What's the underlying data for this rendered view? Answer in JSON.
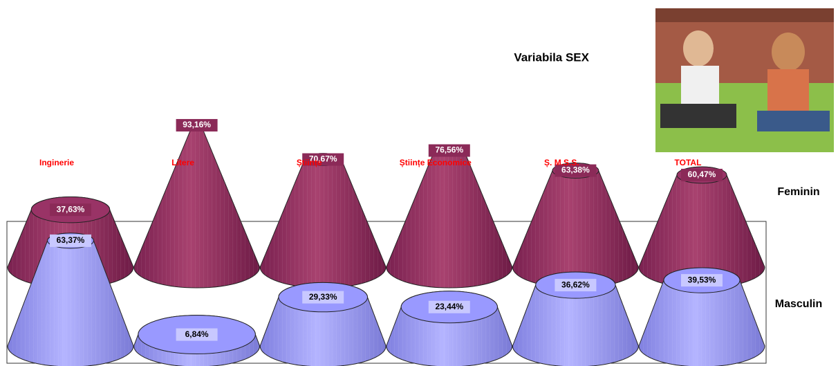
{
  "chart_data": {
    "type": "cone",
    "title": "Variabila SEX",
    "categories": [
      "Inginerie",
      "Litere",
      "Științe",
      "Științe Economice",
      "Ș. M.S.S.",
      "TOTAL"
    ],
    "ylim": [
      0,
      100
    ],
    "series": [
      {
        "name": "Feminin",
        "color": "#993366",
        "values": [
          37.63,
          93.16,
          70.67,
          76.56,
          63.38,
          60.47
        ],
        "value_labels": [
          "37,63%",
          "93,16%",
          "70,67%",
          "76,56%",
          "63,38%",
          "60,47%"
        ]
      },
      {
        "name": "Masculin",
        "color": "#9999ff",
        "values": [
          63.37,
          6.84,
          29.33,
          23.44,
          36.62,
          39.53
        ],
        "value_labels": [
          "63,37%",
          "6,84%",
          "29,33%",
          "23,44%",
          "36,62%",
          "39,53%"
        ]
      }
    ]
  }
}
